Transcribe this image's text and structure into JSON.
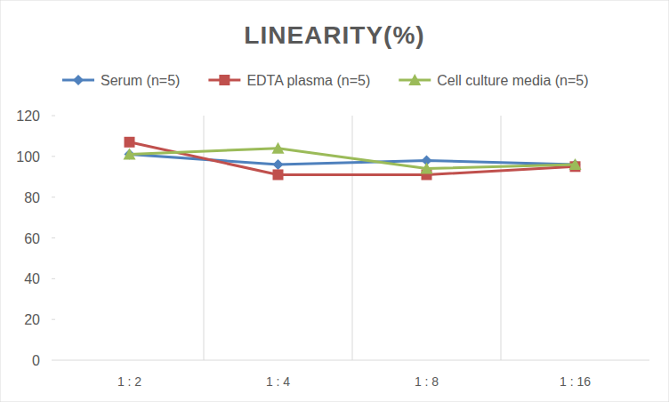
{
  "chart_data": {
    "type": "line",
    "title": "LINEARITY(%)",
    "categories": [
      "1:2",
      "1:4",
      "1:8",
      "1:16"
    ],
    "series": [
      {
        "name": "Serum (n=5)",
        "color": "#4f81bd",
        "marker": "diamond",
        "values": [
          101,
          96,
          98,
          96
        ]
      },
      {
        "name": "EDTA plasma (n=5)",
        "color": "#c0504d",
        "marker": "square",
        "values": [
          107,
          91,
          91,
          95
        ]
      },
      {
        "name": "Cell culture media (n=5)",
        "color": "#9bbb59",
        "marker": "triangle",
        "values": [
          101,
          104,
          94,
          96
        ]
      }
    ],
    "ylim": [
      0,
      120
    ],
    "yticks": [
      0,
      20,
      40,
      60,
      80,
      100,
      120
    ],
    "grid": true,
    "legend": "top"
  }
}
